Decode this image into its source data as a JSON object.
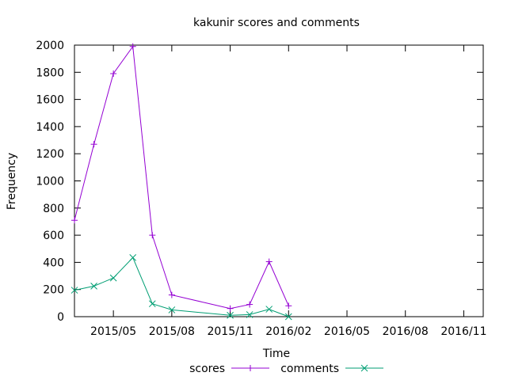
{
  "chart_data": {
    "type": "line",
    "title": "kakunir scores and comments",
    "xlabel": "Time",
    "ylabel": "Frequency",
    "ylim": [
      0,
      2000
    ],
    "xlim": [
      "2015-03-01",
      "2016-12-01"
    ],
    "grid": false,
    "legend_position": "bottom-center",
    "x_ticks": [
      "2015/05",
      "2015/08",
      "2015/11",
      "2016/02",
      "2016/05",
      "2016/08",
      "2016/11"
    ],
    "y_ticks": [
      0,
      200,
      400,
      600,
      800,
      1000,
      1200,
      1400,
      1600,
      1800,
      2000
    ],
    "x": [
      "2015-03-01",
      "2015-04-01",
      "2015-05-01",
      "2015-06-01",
      "2015-07-01",
      "2015-08-01",
      "2015-11-01",
      "2015-12-01",
      "2016-01-01",
      "2016-02-01"
    ],
    "series": [
      {
        "name": "scores",
        "color": "#9400d3",
        "marker": "plus",
        "values": [
          710,
          1270,
          1790,
          1990,
          600,
          160,
          60,
          90,
          405,
          80
        ]
      },
      {
        "name": "comments",
        "color": "#009e73",
        "marker": "cross",
        "values": [
          195,
          225,
          285,
          435,
          95,
          50,
          10,
          15,
          55,
          0
        ]
      }
    ]
  }
}
